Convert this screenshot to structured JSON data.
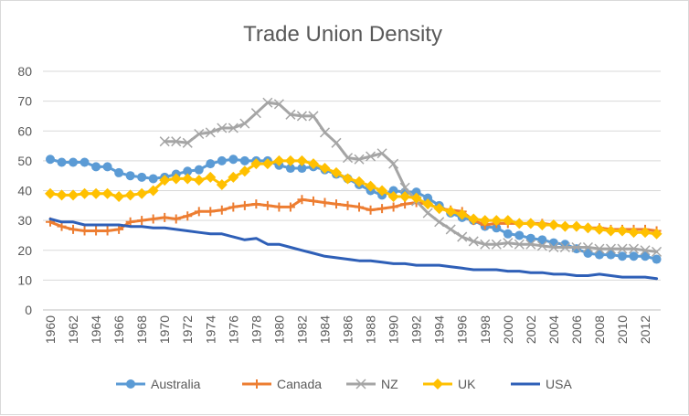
{
  "chart_data": {
    "type": "line",
    "title": "Trade Union Density",
    "xlabel": "",
    "ylabel": "",
    "ylim": [
      0,
      80
    ],
    "yticks": [
      0,
      10,
      20,
      30,
      40,
      50,
      60,
      70,
      80
    ],
    "xlim": [
      1960,
      2013
    ],
    "xticks": [
      1960,
      1962,
      1964,
      1966,
      1968,
      1970,
      1972,
      1974,
      1976,
      1978,
      1980,
      1982,
      1984,
      1986,
      1988,
      1990,
      1992,
      1994,
      1996,
      1998,
      2000,
      2002,
      2004,
      2006,
      2008,
      2010,
      2012
    ],
    "grid": true,
    "legend_position": "bottom",
    "series": [
      {
        "name": "Australia",
        "color": "#5b9bd5",
        "marker": "circle",
        "x": [
          1960,
          1961,
          1962,
          1963,
          1964,
          1965,
          1966,
          1967,
          1968,
          1969,
          1970,
          1971,
          1972,
          1973,
          1974,
          1975,
          1976,
          1977,
          1978,
          1979,
          1980,
          1981,
          1982,
          1983,
          1984,
          1985,
          1986,
          1987,
          1988,
          1989,
          1990,
          1991,
          1992,
          1993,
          1994,
          1995,
          1996,
          1997,
          1998,
          1999,
          2000,
          2001,
          2002,
          2003,
          2004,
          2005,
          2006,
          2007,
          2008,
          2009,
          2010,
          2011,
          2012,
          2013
        ],
        "values": [
          50.5,
          49.5,
          49.5,
          49.5,
          48,
          48,
          46,
          45,
          44.5,
          44,
          44.5,
          45.5,
          46.5,
          47,
          49,
          50,
          50.5,
          50,
          50,
          50,
          48.5,
          47.5,
          47.5,
          48,
          47,
          45.5,
          44,
          42,
          40,
          38.5,
          40,
          39.5,
          39.5,
          37.5,
          35,
          32.5,
          31,
          30,
          28,
          27.5,
          25.5,
          25,
          24,
          23.5,
          22.5,
          22,
          20.5,
          19,
          18.5,
          18.5,
          18,
          18,
          18,
          17
        ]
      },
      {
        "name": "Canada",
        "color": "#ed7d31",
        "marker": "plus",
        "x": [
          1960,
          1961,
          1962,
          1963,
          1964,
          1965,
          1966,
          1967,
          1968,
          1969,
          1970,
          1971,
          1972,
          1973,
          1974,
          1975,
          1976,
          1977,
          1978,
          1979,
          1980,
          1981,
          1982,
          1983,
          1984,
          1985,
          1986,
          1987,
          1988,
          1989,
          1990,
          1991,
          1992,
          1993,
          1994,
          1995,
          1996,
          1997,
          1998,
          1999,
          2000,
          2001,
          2002,
          2003,
          2004,
          2005,
          2006,
          2007,
          2008,
          2009,
          2010,
          2011,
          2012,
          2013
        ],
        "values": [
          29.5,
          28,
          27,
          26.5,
          26.5,
          26.5,
          27,
          29.5,
          30,
          30.5,
          31,
          30.5,
          31.5,
          33,
          33,
          33.5,
          34.5,
          35,
          35.5,
          35,
          34.5,
          34.5,
          37,
          36.5,
          36,
          35.5,
          35,
          34.5,
          33.5,
          34,
          34.5,
          35.5,
          36,
          35.5,
          34,
          33.5,
          33,
          30,
          28.5,
          29,
          29,
          29,
          29,
          29,
          28.5,
          28,
          28,
          27.5,
          27.5,
          27,
          27,
          27,
          27,
          26.5
        ]
      },
      {
        "name": "NZ",
        "color": "#a5a5a5",
        "marker": "x",
        "x": [
          1970,
          1971,
          1972,
          1973,
          1974,
          1975,
          1976,
          1977,
          1978,
          1979,
          1980,
          1981,
          1982,
          1983,
          1984,
          1985,
          1986,
          1987,
          1988,
          1989,
          1990,
          1991,
          1992,
          1993,
          1994,
          1995,
          1996,
          1997,
          1998,
          1999,
          2000,
          2001,
          2002,
          2003,
          2004,
          2005,
          2006,
          2007,
          2008,
          2009,
          2010,
          2011,
          2012,
          2013
        ],
        "values": [
          56.5,
          56.5,
          56,
          59,
          59.5,
          61,
          61,
          62.5,
          66,
          69.5,
          69,
          65.5,
          65,
          65,
          59.5,
          56,
          51,
          50.5,
          51.5,
          52.5,
          49,
          41,
          36.5,
          32.5,
          29.5,
          27,
          24.5,
          23,
          22,
          22,
          22.5,
          22,
          22,
          21.5,
          21,
          21,
          21,
          21,
          20.5,
          20.5,
          20.5,
          20.5,
          20,
          19.5
        ]
      },
      {
        "name": "UK",
        "color": "#ffc000",
        "marker": "diamond",
        "x": [
          1960,
          1961,
          1962,
          1963,
          1964,
          1965,
          1966,
          1967,
          1968,
          1969,
          1970,
          1971,
          1972,
          1973,
          1974,
          1975,
          1976,
          1977,
          1978,
          1979,
          1980,
          1981,
          1982,
          1983,
          1984,
          1985,
          1986,
          1987,
          1988,
          1989,
          1990,
          1991,
          1992,
          1993,
          1994,
          1995,
          1996,
          1997,
          1998,
          1999,
          2000,
          2001,
          2002,
          2003,
          2004,
          2005,
          2006,
          2007,
          2008,
          2009,
          2010,
          2011,
          2012,
          2013
        ],
        "values": [
          39,
          38.5,
          38.5,
          39,
          39,
          39,
          38,
          38.5,
          39,
          40,
          43.5,
          44,
          44,
          43.5,
          44.5,
          42,
          44.5,
          46.5,
          49,
          49,
          50,
          50,
          50,
          49,
          47.5,
          46,
          44,
          43,
          41.5,
          40,
          38,
          38,
          37.5,
          35.5,
          34,
          33,
          32,
          30.5,
          30,
          30,
          30,
          29,
          29,
          28.5,
          28.5,
          28,
          28,
          27.5,
          27,
          26.5,
          26.5,
          26,
          26,
          25.5
        ]
      },
      {
        "name": "USA",
        "color": "#2e5fb7",
        "marker": "none",
        "x": [
          1960,
          1961,
          1962,
          1963,
          1964,
          1965,
          1966,
          1967,
          1968,
          1969,
          1970,
          1971,
          1972,
          1973,
          1974,
          1975,
          1976,
          1977,
          1978,
          1979,
          1980,
          1981,
          1982,
          1983,
          1984,
          1985,
          1986,
          1987,
          1988,
          1989,
          1990,
          1991,
          1992,
          1993,
          1994,
          1995,
          1996,
          1997,
          1998,
          1999,
          2000,
          2001,
          2002,
          2003,
          2004,
          2005,
          2006,
          2007,
          2008,
          2009,
          2010,
          2011,
          2012,
          2013
        ],
        "values": [
          30.5,
          29.5,
          29.5,
          28.5,
          28.5,
          28.5,
          28.5,
          28,
          28,
          27.5,
          27.5,
          27,
          26.5,
          26,
          25.5,
          25.5,
          24.5,
          23.5,
          24,
          22,
          22,
          21,
          20,
          19,
          18,
          17.5,
          17,
          16.5,
          16.5,
          16,
          15.5,
          15.5,
          15,
          15,
          15,
          14.5,
          14,
          13.5,
          13.5,
          13.5,
          13,
          13,
          12.5,
          12.5,
          12,
          12,
          11.5,
          11.5,
          12,
          11.5,
          11,
          11,
          11,
          10.5
        ]
      }
    ]
  }
}
